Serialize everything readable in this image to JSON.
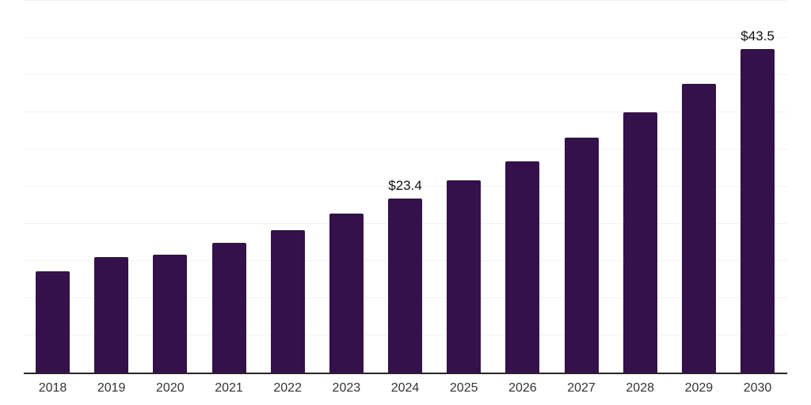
{
  "chart_data": {
    "type": "bar",
    "title": "",
    "xlabel": "",
    "ylabel": "",
    "categories": [
      "2018",
      "2019",
      "2020",
      "2021",
      "2022",
      "2023",
      "2024",
      "2025",
      "2026",
      "2027",
      "2028",
      "2029",
      "2030"
    ],
    "values": [
      13.6,
      15.5,
      15.9,
      17.5,
      19.2,
      21.4,
      23.4,
      25.8,
      28.4,
      31.6,
      35.0,
      38.8,
      43.5
    ],
    "data_labels": [
      "",
      "",
      "",
      "",
      "",
      "",
      "$23.4",
      "",
      "",
      "",
      "",
      "",
      "$43.5"
    ],
    "ylim": [
      0,
      50
    ],
    "gridline_step": 5,
    "grid": "horizontal",
    "legend_position": "none",
    "y_axis_ticks_visible": false,
    "colors": {
      "bar": "#34114A",
      "gridline": "#F2F2F2",
      "axis_line": "#262626",
      "tick_label": "#333333",
      "data_label": "#111111",
      "background": "#FFFFFF"
    }
  }
}
